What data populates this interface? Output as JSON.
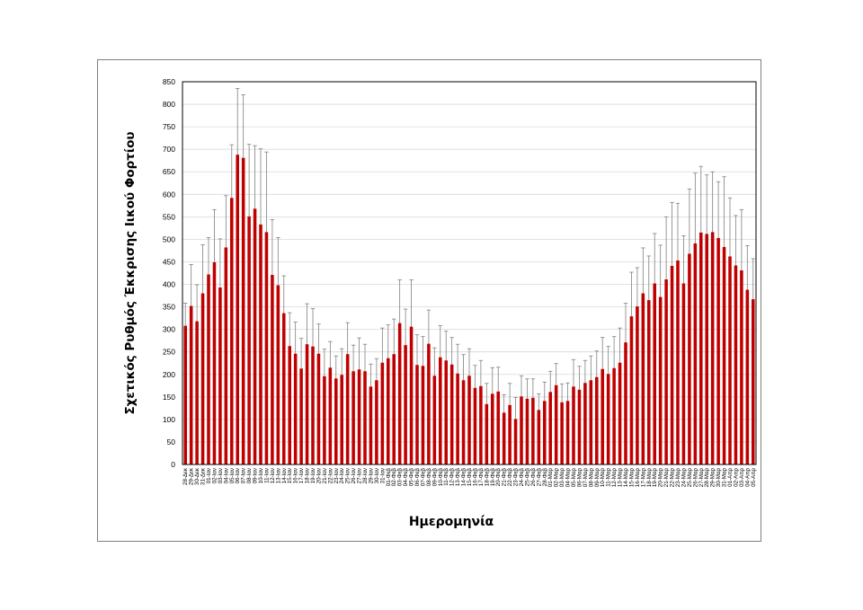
{
  "chart_data": {
    "type": "bar",
    "title": "",
    "xlabel": "Ημερομηνία",
    "ylabel": "Σχετικός Ρυθμός Έκκρισης Ιικού Φορτίου",
    "ylim": [
      0,
      850
    ],
    "yticks": [
      0,
      50,
      100,
      150,
      200,
      250,
      300,
      350,
      400,
      450,
      500,
      550,
      600,
      650,
      700,
      750,
      800,
      850
    ],
    "grid": true,
    "legend": "none",
    "bar_color": "#c00000",
    "error_color": "#808080",
    "categories": [
      "28-Δεκ",
      "29-Δεκ",
      "30-Δεκ",
      "31-Δεκ",
      "01-Ιαν",
      "02-Ιαν",
      "03-Ιαν",
      "04-Ιαν",
      "05-Ιαν",
      "06-Ιαν",
      "07-Ιαν",
      "08-Ιαν",
      "09-Ιαν",
      "10-Ιαν",
      "11-Ιαν",
      "12-Ιαν",
      "13-Ιαν",
      "14-Ιαν",
      "15-Ιαν",
      "16-Ιαν",
      "17-Ιαν",
      "18-Ιαν",
      "19-Ιαν",
      "20-Ιαν",
      "21-Ιαν",
      "22-Ιαν",
      "23-Ιαν",
      "24-Ιαν",
      "25-Ιαν",
      "26-Ιαν",
      "27-Ιαν",
      "28-Ιαν",
      "29-Ιαν",
      "30-Ιαν",
      "31-Ιαν",
      "01-Φεβ",
      "02-Φεβ",
      "03-Φεβ",
      "04-Φεβ",
      "05-Φεβ",
      "06-Φεβ",
      "07-Φεβ",
      "08-Φεβ",
      "09-Φεβ",
      "10-Φεβ",
      "11-Φεβ",
      "12-Φεβ",
      "13-Φεβ",
      "14-Φεβ",
      "15-Φεβ",
      "16-Φεβ",
      "17-Φεβ",
      "18-Φεβ",
      "19-Φεβ",
      "20-Φεβ",
      "21-Φεβ",
      "22-Φεβ",
      "23-Φεβ",
      "24-Φεβ",
      "25-Φεβ",
      "26-Φεβ",
      "27-Φεβ",
      "28-Φεβ",
      "01-Μαρ",
      "02-Μαρ",
      "03-Μαρ",
      "04-Μαρ",
      "05-Μαρ",
      "06-Μαρ",
      "07-Μαρ",
      "08-Μαρ",
      "09-Μαρ",
      "10-Μαρ",
      "11-Μαρ",
      "12-Μαρ",
      "13-Μαρ",
      "14-Μαρ",
      "15-Μαρ",
      "16-Μαρ",
      "17-Μαρ",
      "18-Μαρ",
      "19-Μαρ",
      "20-Μαρ",
      "21-Μαρ",
      "22-Μαρ",
      "23-Μαρ",
      "24-Μαρ",
      "25-Μαρ",
      "26-Μαρ",
      "27-Μαρ",
      "28-Μαρ",
      "29-Μαρ",
      "30-Μαρ",
      "31-Μαρ",
      "01-Απρ",
      "02-Απρ",
      "03-Απρ",
      "04-Απρ",
      "05-Απρ"
    ],
    "values": [
      308,
      352,
      318,
      380,
      422,
      449,
      393,
      482,
      592,
      688,
      681,
      551,
      568,
      533,
      516,
      421,
      398,
      336,
      263,
      246,
      213,
      267,
      262,
      246,
      196,
      215,
      191,
      199,
      245,
      207,
      211,
      207,
      173,
      187,
      226,
      236,
      245,
      314,
      265,
      306,
      221,
      219,
      268,
      197,
      238,
      231,
      222,
      202,
      187,
      197,
      170,
      174,
      134,
      157,
      162,
      115,
      132,
      101,
      151,
      146,
      148,
      121,
      141,
      161,
      176,
      138,
      141,
      173,
      166,
      181,
      187,
      194,
      212,
      201,
      214,
      226,
      271,
      329,
      351,
      380,
      365,
      402,
      372,
      411,
      441,
      453,
      402,
      468,
      491,
      515,
      512,
      516,
      503,
      483,
      462,
      442,
      431,
      388,
      367
    ],
    "errors": [
      50,
      92,
      81,
      108,
      82,
      117,
      108,
      115,
      118,
      147,
      140,
      160,
      140,
      168,
      178,
      123,
      106,
      83,
      74,
      70,
      67,
      90,
      84,
      66,
      60,
      58,
      50,
      58,
      70,
      58,
      70,
      60,
      50,
      48,
      77,
      74,
      78,
      96,
      80,
      104,
      67,
      65,
      75,
      62,
      70,
      65,
      60,
      65,
      57,
      60,
      50,
      57,
      46,
      58,
      54,
      40,
      48,
      48,
      46,
      44,
      42,
      36,
      42,
      46,
      48,
      41,
      40,
      60,
      52,
      50,
      54,
      58,
      70,
      61,
      70,
      77,
      87,
      98,
      86,
      101,
      98,
      111,
      115,
      139,
      141,
      127,
      106,
      144,
      156,
      147,
      131,
      134,
      125,
      156,
      130,
      111,
      135,
      98,
      90
    ]
  }
}
